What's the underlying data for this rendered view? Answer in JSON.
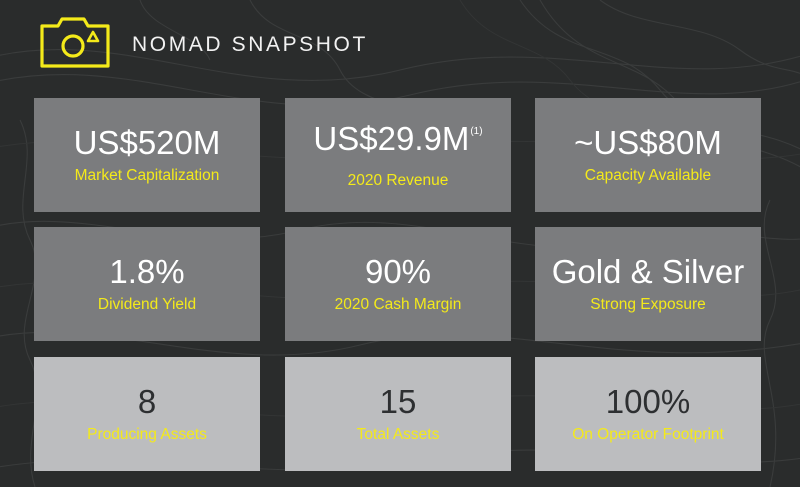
{
  "header": {
    "title": "NOMAD SNAPSHOT",
    "icon": "camera-icon",
    "accent_color": "#f4ea1a"
  },
  "tiles": [
    {
      "value": "US$520M",
      "footnote": "",
      "label": "Market Capitalization",
      "style": "dark"
    },
    {
      "value": "US$29.9M",
      "footnote": "(1)",
      "label": "2020 Revenue",
      "style": "dark"
    },
    {
      "value": "~US$80M",
      "footnote": "",
      "label": "Capacity Available",
      "style": "dark"
    },
    {
      "value": "1.8%",
      "footnote": "",
      "label": "Dividend Yield",
      "style": "dark"
    },
    {
      "value": "90%",
      "footnote": "",
      "label": "2020 Cash Margin",
      "style": "dark"
    },
    {
      "value": "Gold & Silver",
      "footnote": "",
      "label": "Strong Exposure",
      "style": "dark"
    },
    {
      "value": "8",
      "footnote": "",
      "label": "Producing Assets",
      "style": "light"
    },
    {
      "value": "15",
      "footnote": "",
      "label": "Total Assets",
      "style": "light"
    },
    {
      "value": "100%",
      "footnote": "",
      "label": "On Operator Footprint",
      "style": "light"
    }
  ],
  "colors": {
    "background": "#2a2c2c",
    "tile_dark": "#7b7c7e",
    "tile_light": "#bcbdbf",
    "label_yellow": "#f4ea1a"
  }
}
